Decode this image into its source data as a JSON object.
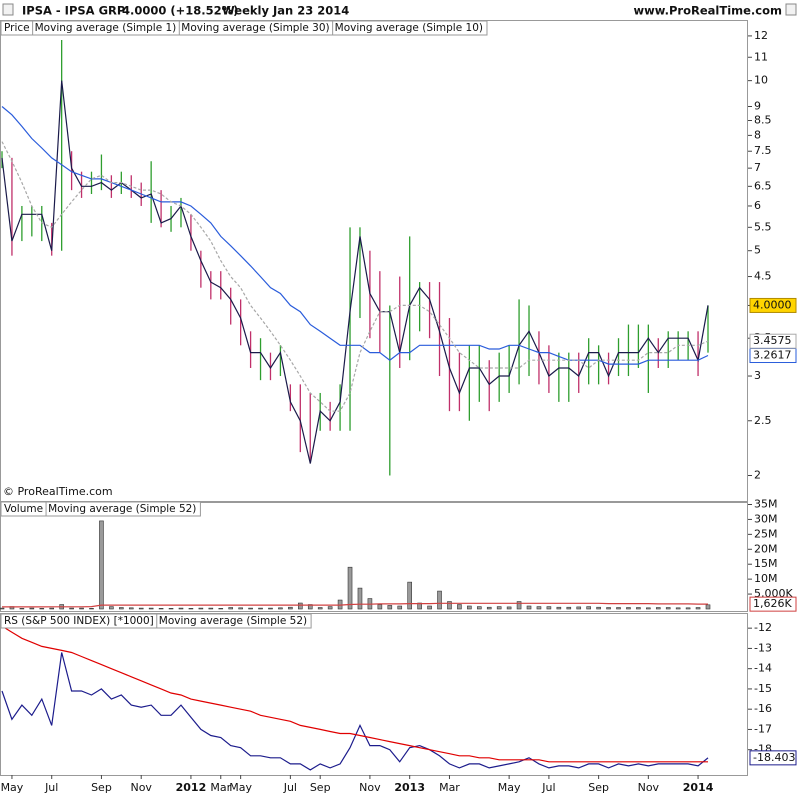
{
  "header": {
    "symbol": "IPSA - IPSA GRP",
    "quote": "4.0000 (+18.52%)",
    "period": "Weekly  Jan 23 2014",
    "site": "www.ProRealTime.com"
  },
  "chart_data": [
    {
      "type": "ohlc",
      "log": true,
      "ylim": [
        1.81,
        12.7
      ],
      "yticks": [
        2,
        2.5,
        3,
        3.5,
        4,
        4.5,
        5,
        5.5,
        6,
        6.5,
        7,
        7.5,
        8,
        8.5,
        9,
        10,
        11,
        12
      ],
      "annotation": "© ProRealTime.com",
      "series": [
        {
          "name": "Price",
          "line_name": "Moving average (Simple 1)",
          "color": "#1a1a4a",
          "up_color": "#2e9e2e",
          "down_color": "#c0306a",
          "badge_color": "#ffd400",
          "last_label": "4.0000",
          "values": [
            7.3,
            5.2,
            5.8,
            5.8,
            5.8,
            5.0,
            10.0,
            7.0,
            6.5,
            6.5,
            6.6,
            6.4,
            6.6,
            6.4,
            6.2,
            6.3,
            5.6,
            5.7,
            6.0,
            5.3,
            4.8,
            4.4,
            4.3,
            4.1,
            3.8,
            3.3,
            3.3,
            3.1,
            3.3,
            2.7,
            2.5,
            2.1,
            2.6,
            2.5,
            2.7,
            3.9,
            5.3,
            4.2,
            3.9,
            3.9,
            3.3,
            4.0,
            4.3,
            4.1,
            3.6,
            3.1,
            2.8,
            3.1,
            3.1,
            2.9,
            3.0,
            3.0,
            3.4,
            3.6,
            3.3,
            3.0,
            3.1,
            3.1,
            3.0,
            3.3,
            3.3,
            3.0,
            3.3,
            3.3,
            3.3,
            3.5,
            3.3,
            3.5,
            3.5,
            3.5,
            3.2,
            4.0
          ],
          "high": [
            7.5,
            7.3,
            6.0,
            6.0,
            6.0,
            5.6,
            11.8,
            7.5,
            6.9,
            6.9,
            7.4,
            6.8,
            6.9,
            6.8,
            6.6,
            7.2,
            6.4,
            6.0,
            6.2,
            5.8,
            5.0,
            4.6,
            4.6,
            4.3,
            4.1,
            3.6,
            3.5,
            3.3,
            3.4,
            2.9,
            2.9,
            2.8,
            2.8,
            2.7,
            2.9,
            5.5,
            5.5,
            5.0,
            4.6,
            4.0,
            4.5,
            5.3,
            4.4,
            4.4,
            4.4,
            3.8,
            3.3,
            3.4,
            3.4,
            3.2,
            3.3,
            3.4,
            4.1,
            4.0,
            3.6,
            3.4,
            3.3,
            3.3,
            3.3,
            3.5,
            3.4,
            3.3,
            3.5,
            3.7,
            3.7,
            3.7,
            3.5,
            3.6,
            3.6,
            3.6,
            3.6,
            4.0
          ],
          "low": [
            7.0,
            4.9,
            5.2,
            5.3,
            5.2,
            4.9,
            5.0,
            6.4,
            6.2,
            6.3,
            6.4,
            6.2,
            6.3,
            6.2,
            6.0,
            5.6,
            5.5,
            5.4,
            5.5,
            5.0,
            4.3,
            4.1,
            4.1,
            3.7,
            3.4,
            3.1,
            2.95,
            2.95,
            3.0,
            2.6,
            2.2,
            2.1,
            2.4,
            2.4,
            2.4,
            2.4,
            3.8,
            3.5,
            3.3,
            2.0,
            3.1,
            3.2,
            3.6,
            3.5,
            3.0,
            2.6,
            2.6,
            2.5,
            2.7,
            2.6,
            2.7,
            2.8,
            2.9,
            3.0,
            2.9,
            2.8,
            2.7,
            2.7,
            2.8,
            2.9,
            2.9,
            2.9,
            3.0,
            3.0,
            3.1,
            2.8,
            3.1,
            3.1,
            3.2,
            3.2,
            3.0,
            3.3
          ]
        },
        {
          "name": "Moving average (Simple 30)",
          "color": "#2a5cdb",
          "last_label": "3.2617",
          "values": [
            9.0,
            8.7,
            8.3,
            7.9,
            7.6,
            7.3,
            7.1,
            6.9,
            6.8,
            6.7,
            6.7,
            6.6,
            6.5,
            6.4,
            6.3,
            6.2,
            6.1,
            6.1,
            6.1,
            6.0,
            5.8,
            5.6,
            5.3,
            5.1,
            4.9,
            4.7,
            4.5,
            4.3,
            4.2,
            4.0,
            3.9,
            3.7,
            3.6,
            3.5,
            3.4,
            3.4,
            3.4,
            3.3,
            3.3,
            3.2,
            3.3,
            3.3,
            3.4,
            3.4,
            3.4,
            3.4,
            3.4,
            3.4,
            3.4,
            3.35,
            3.35,
            3.4,
            3.4,
            3.35,
            3.3,
            3.3,
            3.25,
            3.2,
            3.2,
            3.2,
            3.2,
            3.15,
            3.15,
            3.15,
            3.15,
            3.2,
            3.2,
            3.2,
            3.2,
            3.2,
            3.2,
            3.2617
          ]
        },
        {
          "name": "Moving average (Simple 10)",
          "color": "#a8a8a8",
          "dashed": true,
          "last_label": "3.4575",
          "values": [
            7.8,
            7.2,
            6.6,
            6.0,
            5.6,
            5.5,
            5.8,
            6.1,
            6.4,
            6.7,
            6.8,
            6.6,
            6.6,
            6.5,
            6.4,
            6.4,
            6.3,
            6.1,
            6.0,
            5.8,
            5.5,
            5.2,
            4.8,
            4.5,
            4.3,
            4.0,
            3.8,
            3.6,
            3.4,
            3.2,
            3.0,
            2.8,
            2.7,
            2.6,
            2.6,
            2.8,
            3.3,
            3.6,
            3.9,
            3.9,
            4.0,
            4.0,
            4.0,
            3.9,
            3.7,
            3.5,
            3.3,
            3.2,
            3.1,
            3.1,
            3.1,
            3.1,
            3.1,
            3.2,
            3.2,
            3.2,
            3.2,
            3.2,
            3.2,
            3.1,
            3.2,
            3.2,
            3.2,
            3.2,
            3.2,
            3.3,
            3.3,
            3.3,
            3.4,
            3.4,
            3.4,
            3.4575
          ]
        }
      ]
    },
    {
      "type": "bar",
      "ylim": [
        0,
        35500000
      ],
      "yticks": [
        {
          "value": 5000000,
          "label": "5,000K"
        },
        {
          "value": 10000000,
          "label": "10M"
        },
        {
          "value": 15000000,
          "label": "15M"
        },
        {
          "value": 20000000,
          "label": "20M"
        },
        {
          "value": 25000000,
          "label": "25M"
        },
        {
          "value": 30000000,
          "label": "30M"
        },
        {
          "value": 35000000,
          "label": "35M"
        }
      ],
      "series": [
        {
          "name": "Volume",
          "color": "#9a9a9a",
          "values": [
            300000,
            800000,
            200000,
            300000,
            200000,
            300000,
            1500000,
            300000,
            300000,
            200000,
            29500000,
            800000,
            500000,
            400000,
            300000,
            300000,
            200000,
            200000,
            300000,
            200000,
            300000,
            300000,
            200000,
            500000,
            400000,
            300000,
            300000,
            300000,
            400000,
            600000,
            2000000,
            1500000,
            500000,
            800000,
            3000000,
            14000000,
            7000000,
            3500000,
            1500000,
            1200000,
            1000000,
            9000000,
            2000000,
            1000000,
            6000000,
            2500000,
            1500000,
            1000000,
            800000,
            600000,
            800000,
            700000,
            2500000,
            1000000,
            800000,
            800000,
            600000,
            600000,
            700000,
            800000,
            600000,
            500000,
            500000,
            500000,
            500000,
            400000,
            500000,
            500000,
            400000,
            400000,
            500000,
            1400000
          ]
        },
        {
          "name": "Moving average (Simple 52)",
          "color": "#d04040",
          "last_label": "1,626K",
          "values": [
            700000,
            700000,
            700000,
            700000,
            700000,
            750000,
            750000,
            750000,
            750000,
            800000,
            1300000,
            1300000,
            1300000,
            1300000,
            1300000,
            1300000,
            1300000,
            1300000,
            1300000,
            1300000,
            1300000,
            1300000,
            1300000,
            1300000,
            1300000,
            1300000,
            1300000,
            1300000,
            1300000,
            1300000,
            1300000,
            1300000,
            1300000,
            1300000,
            1300000,
            1500000,
            1600000,
            1600000,
            1700000,
            1700000,
            1700000,
            1800000,
            1800000,
            1800000,
            1900000,
            1900000,
            1900000,
            1900000,
            1900000,
            1900000,
            1900000,
            1900000,
            1900000,
            1900000,
            1900000,
            1900000,
            1900000,
            1900000,
            1900000,
            1900000,
            1900000,
            1800000,
            1800000,
            1800000,
            1800000,
            1800000,
            1700000,
            1700000,
            1700000,
            1700000,
            1650000,
            1626000
          ]
        }
      ]
    },
    {
      "type": "line",
      "ylim": [
        -19.2,
        -11.35
      ],
      "yticks": [
        -18,
        -17,
        -16,
        -15,
        -14,
        -13,
        -12
      ],
      "categories": [
        null,
        "May",
        null,
        null,
        null,
        "Jul",
        null,
        null,
        null,
        null,
        "Sep",
        null,
        null,
        null,
        "Nov",
        null,
        null,
        null,
        null,
        "2012",
        null,
        null,
        "Mar",
        null,
        "May",
        null,
        null,
        null,
        null,
        "Jul",
        null,
        null,
        "Sep",
        null,
        null,
        null,
        null,
        "Nov",
        null,
        null,
        null,
        "2013",
        null,
        null,
        null,
        "Mar",
        null,
        null,
        null,
        null,
        null,
        "May",
        null,
        null,
        null,
        "Jul",
        null,
        null,
        null,
        null,
        "Sep",
        null,
        null,
        null,
        null,
        "Nov",
        null,
        null,
        null,
        null,
        "2014",
        null
      ],
      "series": [
        {
          "name": "RS (S&P 500 INDEX) [*1000]",
          "color": "#1c1c8c",
          "last_label": "-18.403",
          "values": [
            -15.1,
            -16.5,
            -15.8,
            -16.3,
            -15.5,
            -16.8,
            -13.2,
            -15.1,
            -15.1,
            -15.3,
            -15.0,
            -15.5,
            -15.3,
            -15.8,
            -15.9,
            -15.8,
            -16.3,
            -16.3,
            -15.8,
            -16.4,
            -17.0,
            -17.3,
            -17.4,
            -17.8,
            -17.9,
            -18.3,
            -18.3,
            -18.4,
            -18.4,
            -18.7,
            -18.7,
            -19.0,
            -18.7,
            -18.9,
            -18.7,
            -17.9,
            -16.8,
            -17.8,
            -17.8,
            -18.0,
            -18.6,
            -17.9,
            -17.8,
            -18.0,
            -18.3,
            -18.7,
            -18.9,
            -18.7,
            -18.7,
            -18.9,
            -18.8,
            -18.7,
            -18.6,
            -18.4,
            -18.7,
            -18.9,
            -18.8,
            -18.8,
            -18.9,
            -18.7,
            -18.7,
            -18.9,
            -18.7,
            -18.8,
            -18.7,
            -18.8,
            -18.7,
            -18.7,
            -18.7,
            -18.7,
            -18.8,
            -18.403
          ]
        },
        {
          "name": "Moving average (Simple 52)",
          "color": "#e00000",
          "values": [
            -11.9,
            -12.2,
            -12.5,
            -12.7,
            -12.9,
            -13.0,
            -13.1,
            -13.2,
            -13.4,
            -13.6,
            -13.8,
            -14.0,
            -14.2,
            -14.4,
            -14.6,
            -14.8,
            -15.0,
            -15.2,
            -15.3,
            -15.5,
            -15.6,
            -15.7,
            -15.8,
            -15.9,
            -16.0,
            -16.1,
            -16.3,
            -16.4,
            -16.5,
            -16.6,
            -16.8,
            -16.9,
            -17.0,
            -17.1,
            -17.2,
            -17.2,
            -17.3,
            -17.4,
            -17.5,
            -17.6,
            -17.7,
            -17.8,
            -17.9,
            -18.0,
            -18.1,
            -18.2,
            -18.3,
            -18.3,
            -18.4,
            -18.4,
            -18.5,
            -18.5,
            -18.5,
            -18.5,
            -18.5,
            -18.6,
            -18.6,
            -18.6,
            -18.6,
            -18.6,
            -18.6,
            -18.6,
            -18.6,
            -18.6,
            -18.6,
            -18.6,
            -18.6,
            -18.6,
            -18.6,
            -18.6,
            -18.6,
            -18.6
          ]
        }
      ]
    }
  ]
}
